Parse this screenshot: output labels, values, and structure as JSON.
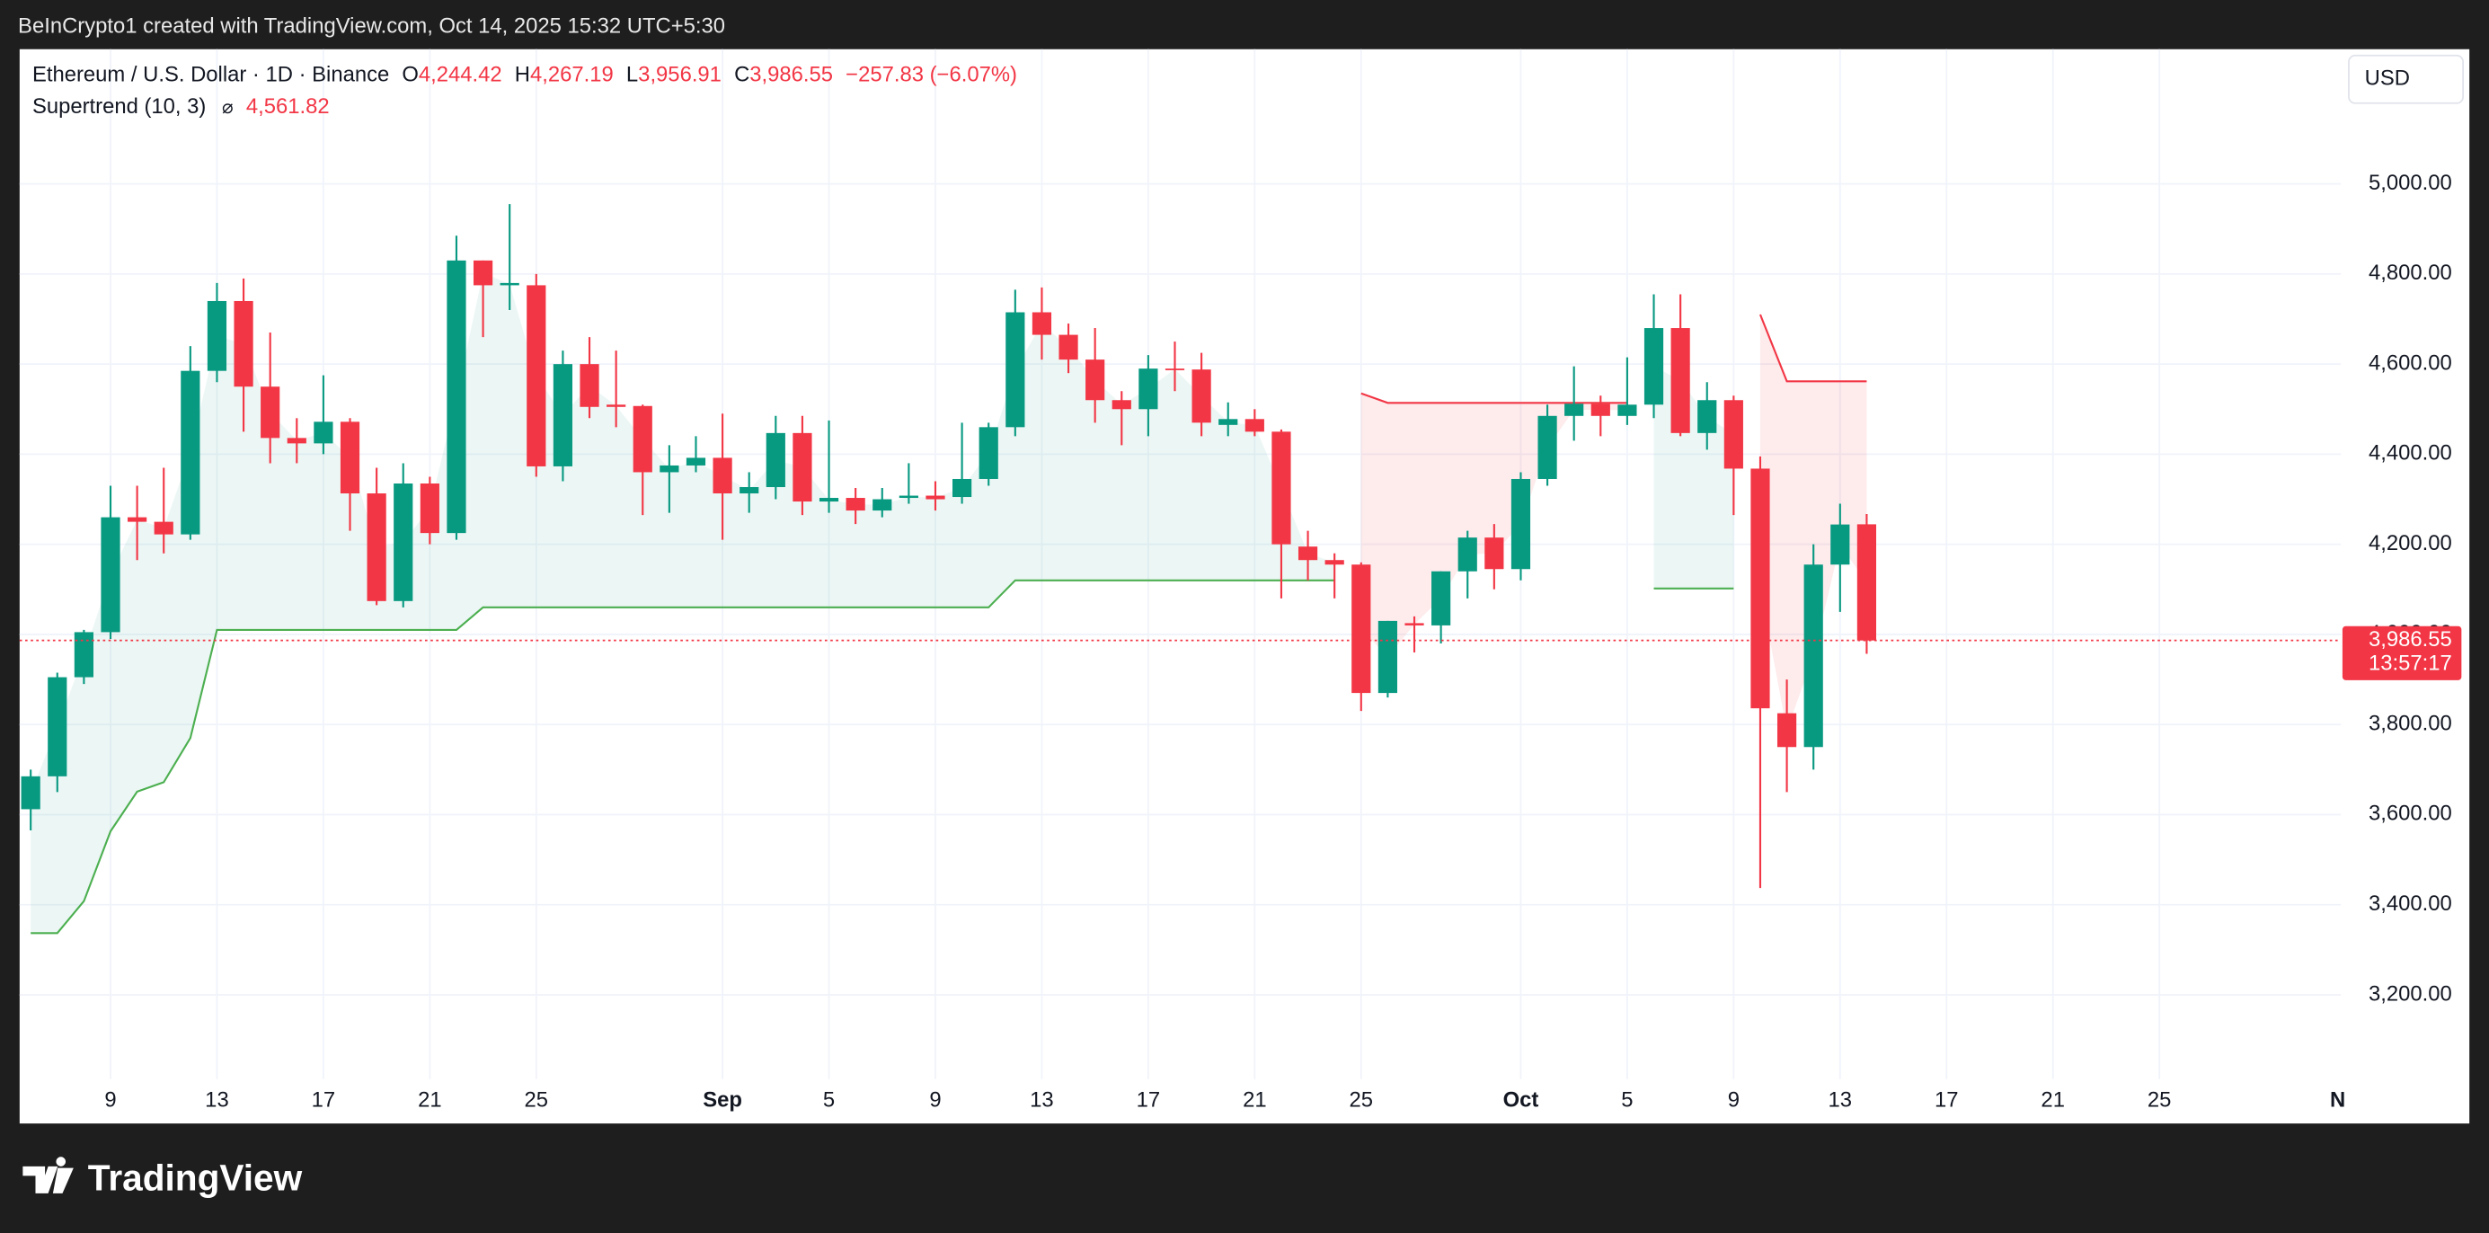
{
  "top_bar": "BeInCrypto1 created with TradingView.com, Oct 14, 2025 15:32 UTC+5:30",
  "currency_button": "USD",
  "brand": "TradingView",
  "legend": {
    "symbol": "Ethereum / U.S. Dollar · 1D · Binance",
    "items": [
      {
        "key": "O",
        "value": "4,244.42"
      },
      {
        "key": "H",
        "value": "4,267.19"
      },
      {
        "key": "L",
        "value": "3,956.91"
      },
      {
        "key": "C",
        "value": "3,986.55"
      }
    ],
    "change": "−257.83 (−6.07%)"
  },
  "chart_data": {
    "type": "candlestick",
    "up_color": "#089981",
    "down_color": "#f23645",
    "x": [
      "2025-08-06",
      "2025-08-07",
      "2025-08-08",
      "2025-08-09",
      "2025-08-10",
      "2025-08-11",
      "2025-08-12",
      "2025-08-13",
      "2025-08-14",
      "2025-08-15",
      "2025-08-16",
      "2025-08-17",
      "2025-08-18",
      "2025-08-19",
      "2025-08-20",
      "2025-08-21",
      "2025-08-22",
      "2025-08-23",
      "2025-08-24",
      "2025-08-25",
      "2025-08-26",
      "2025-08-27",
      "2025-08-28",
      "2025-08-29",
      "2025-08-30",
      "2025-08-31",
      "2025-09-01",
      "2025-09-02",
      "2025-09-03",
      "2025-09-04",
      "2025-09-05",
      "2025-09-06",
      "2025-09-07",
      "2025-09-08",
      "2025-09-09",
      "2025-09-10",
      "2025-09-11",
      "2025-09-12",
      "2025-09-13",
      "2025-09-14",
      "2025-09-15",
      "2025-09-16",
      "2025-09-17",
      "2025-09-18",
      "2025-09-19",
      "2025-09-20",
      "2025-09-21",
      "2025-09-22",
      "2025-09-23",
      "2025-09-24",
      "2025-09-25",
      "2025-09-26",
      "2025-09-27",
      "2025-09-28",
      "2025-09-29",
      "2025-09-30",
      "2025-10-01",
      "2025-10-02",
      "2025-10-03",
      "2025-10-04",
      "2025-10-05",
      "2025-10-06",
      "2025-10-07",
      "2025-10-08",
      "2025-10-09",
      "2025-10-10",
      "2025-10-11",
      "2025-10-12",
      "2025-10-13",
      "2025-10-14"
    ],
    "open": [
      3612,
      3685,
      3905,
      4005,
      4260,
      4250,
      4222,
      4585,
      4740,
      4550,
      4436,
      4424,
      4472,
      4313,
      4074,
      4335,
      4225,
      4830,
      4775,
      4775,
      4373,
      4600,
      4510,
      4507,
      4360,
      4375,
      4392,
      4313,
      4327,
      4447,
      4295,
      4303,
      4275,
      4303,
      4308,
      4305,
      4345,
      4460,
      4715,
      4665,
      4610,
      4520,
      4500,
      4590,
      4588,
      4465,
      4478,
      4450,
      4195,
      4165,
      4155,
      3870,
      4025,
      4020,
      4140,
      4215,
      4145,
      4345,
      4485,
      4512,
      4485,
      4510,
      4680,
      4447,
      4520,
      4368,
      3825,
      3750,
      4155,
      4244.42
    ],
    "high": [
      3700,
      3915,
      4010,
      4330,
      4330,
      4370,
      4640,
      4780,
      4790,
      4670,
      4480,
      4575,
      4480,
      4370,
      4380,
      4350,
      4885,
      4830,
      4955,
      4800,
      4630,
      4660,
      4630,
      4510,
      4420,
      4440,
      4490,
      4360,
      4485,
      4485,
      4475,
      4325,
      4325,
      4380,
      4340,
      4470,
      4470,
      4765,
      4770,
      4690,
      4680,
      4540,
      4620,
      4650,
      4625,
      4515,
      4500,
      4455,
      4230,
      4180,
      4160,
      4030,
      4040,
      4140,
      4230,
      4245,
      4360,
      4510,
      4595,
      4530,
      4615,
      4755,
      4755,
      4560,
      4530,
      4395,
      3900,
      4200,
      4290,
      4267.19
    ],
    "low": [
      3565,
      3650,
      3890,
      3990,
      4165,
      4180,
      4210,
      4560,
      4450,
      4380,
      4380,
      4400,
      4230,
      4065,
      4060,
      4200,
      4210,
      4660,
      4720,
      4350,
      4340,
      4480,
      4460,
      4265,
      4270,
      4360,
      4210,
      4270,
      4300,
      4265,
      4270,
      4245,
      4260,
      4290,
      4275,
      4290,
      4330,
      4440,
      4610,
      4580,
      4470,
      4420,
      4440,
      4540,
      4440,
      4440,
      4440,
      4080,
      4120,
      4080,
      3830,
      3860,
      3960,
      3980,
      4080,
      4100,
      4120,
      4330,
      4430,
      4440,
      4465,
      4480,
      4440,
      4410,
      4265,
      3437,
      3650,
      3700,
      4050,
      3956.91
    ],
    "close": [
      3685,
      3905,
      4005,
      4260,
      4250,
      4222,
      4585,
      4740,
      4550,
      4436,
      4424,
      4472,
      4313,
      4074,
      4335,
      4225,
      4830,
      4775,
      4780,
      4373,
      4600,
      4505,
      4505,
      4360,
      4375,
      4392,
      4313,
      4327,
      4447,
      4295,
      4303,
      4275,
      4300,
      4308,
      4300,
      4345,
      4460,
      4715,
      4665,
      4610,
      4520,
      4500,
      4590,
      4588,
      4470,
      4478,
      4450,
      4200,
      4165,
      4155,
      3870,
      4030,
      4020,
      4140,
      4215,
      4145,
      4345,
      4485,
      4512,
      4485,
      4510,
      4680,
      4447,
      4520,
      4368,
      3836,
      3750,
      4155,
      4244,
      3986.55
    ],
    "supertrend": {
      "label": "Supertrend (10, 3)",
      "value_label": "4,561.82",
      "up_color": "#4caf50",
      "down_color": "#f23645",
      "up": [
        3337,
        3337,
        3408,
        3563,
        3651,
        3672,
        3770,
        4010,
        4010,
        4010,
        4010,
        4010,
        4010,
        4010,
        4010,
        4010,
        4010,
        4060,
        4060,
        4060,
        4060,
        4060,
        4060,
        4060,
        4060,
        4060,
        4060,
        4060,
        4060,
        4060,
        4060,
        4060,
        4060,
        4060,
        4060,
        4060,
        4060,
        4120,
        4120,
        4120,
        4120,
        4120,
        4120,
        4120,
        4120,
        4120,
        4120,
        4120,
        4120,
        4120,
        null,
        null,
        null,
        null,
        null,
        null,
        null,
        null,
        null,
        null,
        null,
        4102,
        4102,
        4102,
        4102,
        null,
        null,
        null,
        null,
        null
      ],
      "down": [
        null,
        null,
        null,
        null,
        null,
        null,
        null,
        null,
        null,
        null,
        null,
        null,
        null,
        null,
        null,
        null,
        null,
        null,
        null,
        null,
        null,
        null,
        null,
        null,
        null,
        null,
        null,
        null,
        null,
        null,
        null,
        null,
        null,
        null,
        null,
        null,
        null,
        null,
        null,
        null,
        null,
        null,
        null,
        null,
        null,
        null,
        null,
        null,
        null,
        null,
        4535,
        4514,
        4514,
        4514,
        4514,
        4514,
        4514,
        4514,
        4514,
        4514,
        4514,
        null,
        null,
        null,
        null,
        4710,
        4561.82,
        4561.82,
        4561.82,
        4561.82
      ]
    },
    "last_price_label": "3,986.55",
    "countdown": "13:57:17",
    "xlim": [
      "2025-08-05T14:00Z",
      "2025-11-01T00:00Z"
    ],
    "xticks": [
      {
        "value": "2025-08-09",
        "label": "9"
      },
      {
        "value": "2025-08-13",
        "label": "13"
      },
      {
        "value": "2025-08-17",
        "label": "17"
      },
      {
        "value": "2025-08-21",
        "label": "21"
      },
      {
        "value": "2025-08-25",
        "label": "25"
      },
      {
        "value": "2025-09-01",
        "label": "Sep"
      },
      {
        "value": "2025-09-05",
        "label": "5"
      },
      {
        "value": "2025-09-09",
        "label": "9"
      },
      {
        "value": "2025-09-13",
        "label": "13"
      },
      {
        "value": "2025-09-17",
        "label": "17"
      },
      {
        "value": "2025-09-21",
        "label": "21"
      },
      {
        "value": "2025-09-25",
        "label": "25"
      },
      {
        "value": "2025-10-01",
        "label": "Oct"
      },
      {
        "value": "2025-10-05",
        "label": "5"
      },
      {
        "value": "2025-10-09",
        "label": "9"
      },
      {
        "value": "2025-10-13",
        "label": "13"
      },
      {
        "value": "2025-10-17",
        "label": "17"
      },
      {
        "value": "2025-10-21",
        "label": "21"
      },
      {
        "value": "2025-10-25",
        "label": "25"
      },
      {
        "value": "2025-11-01",
        "label": "N"
      }
    ],
    "ylim": [
      3013,
      5299
    ],
    "yticks": [
      {
        "value": 3200,
        "label": "3,200.00"
      },
      {
        "value": 3400,
        "label": "3,400.00"
      },
      {
        "value": 3600,
        "label": "3,600.00"
      },
      {
        "value": 3800,
        "label": "3,800.00"
      },
      {
        "value": 4000,
        "label": "4,000.00"
      },
      {
        "value": 4200,
        "label": "4,200.00"
      },
      {
        "value": 4400,
        "label": "4,400.00"
      },
      {
        "value": 4600,
        "label": "4,600.00"
      },
      {
        "value": 4800,
        "label": "4,800.00"
      },
      {
        "value": 5000,
        "label": "5,000.00"
      }
    ],
    "grid": true
  }
}
